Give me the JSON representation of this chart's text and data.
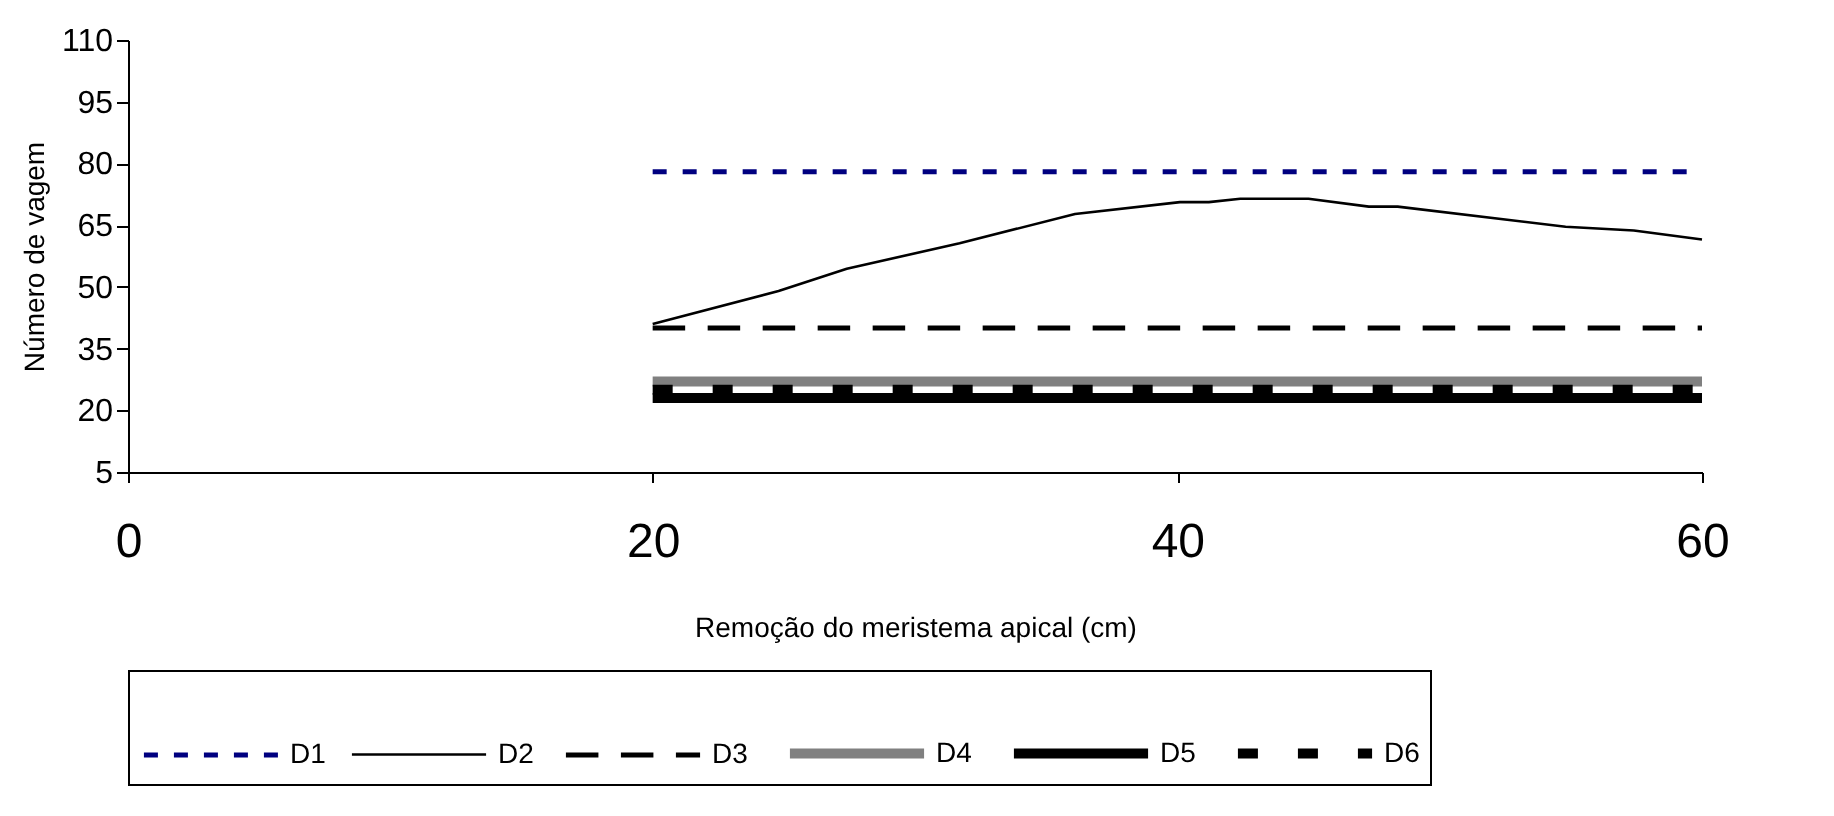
{
  "chart_data": {
    "type": "line",
    "xlabel": "Remoção do meristema apical (cm)",
    "ylabel": "Número de vagem",
    "xlim": [
      0,
      60
    ],
    "xticks": [
      0,
      20,
      40,
      60
    ],
    "ylim": [
      5,
      110
    ],
    "yticks": [
      5,
      20,
      35,
      50,
      65,
      80,
      95,
      110
    ],
    "grid": false,
    "legend": "bottom",
    "marker": "none",
    "series": [
      {
        "name": "D1",
        "color": "#000080",
        "line_style": "dotted",
        "x": [
          20,
          60
        ],
        "values": [
          78,
          78
        ]
      },
      {
        "name": "D2",
        "color": "#000000",
        "line_style": "solid",
        "x": [
          20,
          24.8,
          27.4,
          31.7,
          36.1,
          40.1,
          41.2,
          42.4,
          45,
          47.3,
          48.4,
          54.8,
          57.4,
          60
        ],
        "values": [
          41,
          49,
          54.4,
          60.6,
          67.7,
          70.6,
          70.6,
          71.4,
          71.4,
          69.5,
          69.5,
          64.6,
          63.7,
          61.5
        ]
      },
      {
        "name": "D3",
        "color": "#000000",
        "line_style": "dashed",
        "x": [
          20,
          60
        ],
        "values": [
          40,
          40
        ]
      },
      {
        "name": "D4",
        "color": "#808080",
        "line_style": "solid",
        "x": [
          20,
          60
        ],
        "values": [
          27,
          27
        ]
      },
      {
        "name": "D5",
        "color": "#000000",
        "line_style": "solid",
        "x": [
          20,
          60
        ],
        "values": [
          23,
          23
        ]
      },
      {
        "name": "D6",
        "color": "#000000",
        "line_style": "dashed",
        "x": [
          20,
          60
        ],
        "values": [
          25,
          25
        ]
      }
    ]
  }
}
